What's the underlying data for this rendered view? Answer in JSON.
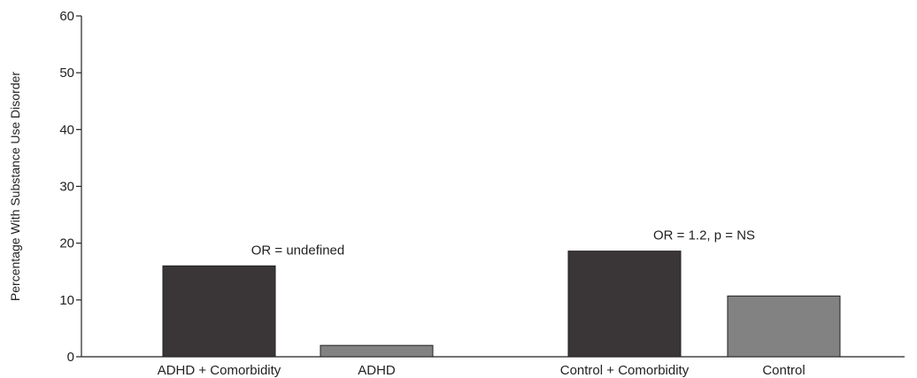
{
  "chart_data": {
    "type": "bar",
    "title": "",
    "xlabel": "",
    "ylabel": "Percentage With Substance Use Disorder",
    "ylim": [
      0,
      60
    ],
    "yticks": [
      0,
      10,
      20,
      30,
      40,
      50,
      60
    ],
    "grid": false,
    "legend": "none",
    "bars": [
      {
        "category": "ADHD + Comorbidity",
        "value": 16,
        "color": "#3a3637"
      },
      {
        "category": "ADHD",
        "value": 2,
        "color": "#828282"
      },
      {
        "category": "Control + Comorbidity",
        "value": 18.6,
        "color": "#3a3637"
      },
      {
        "category": "Control",
        "value": 10.7,
        "color": "#828282"
      }
    ],
    "annotations": [
      {
        "text": "OR = undefined",
        "group": 0
      },
      {
        "text": "OR = 1.2, p = NS",
        "group": 1
      }
    ]
  }
}
